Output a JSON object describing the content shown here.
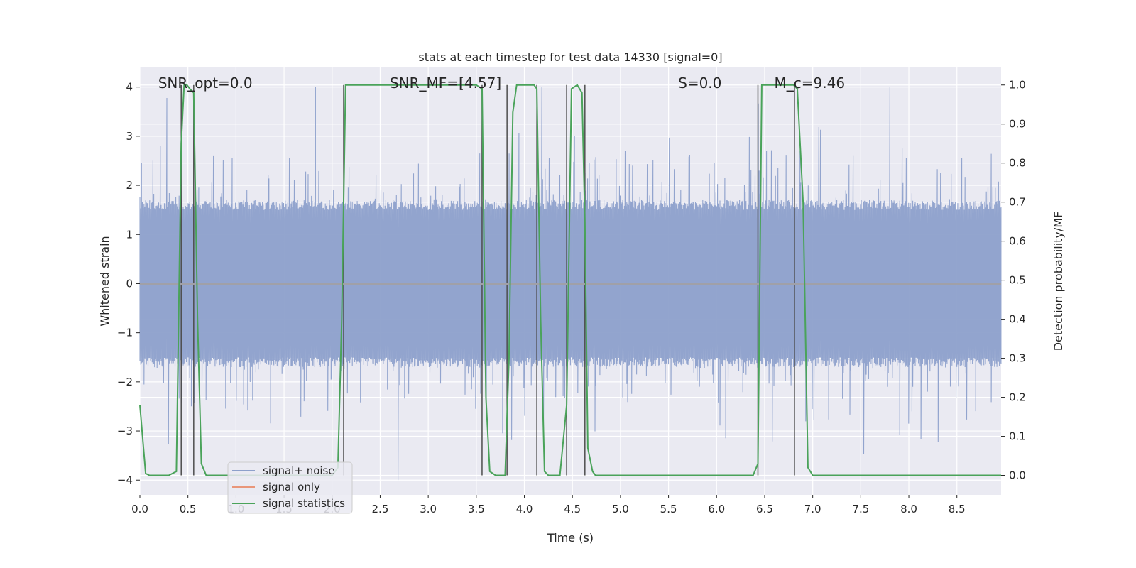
{
  "chart_data": {
    "type": "line",
    "title": "stats at each timestep for test data 14330 [signal=0]",
    "xlabel": "Time (s)",
    "ylabel": "Whitened strain",
    "y2label": "Detection probability/MF",
    "xlim": [
      0.0,
      8.96
    ],
    "ylim": [
      -4.3,
      4.4
    ],
    "y2lim": [
      -0.05,
      1.045
    ],
    "xticks": [
      0.0,
      0.5,
      1.0,
      1.5,
      2.0,
      2.5,
      3.0,
      3.5,
      4.0,
      4.5,
      5.0,
      5.5,
      6.0,
      6.5,
      7.0,
      7.5,
      8.0,
      8.5
    ],
    "xtick_labels": [
      "0.0",
      "0.5",
      "1.0",
      "1.5",
      "2.0",
      "2.5",
      "3.0",
      "3.5",
      "4.0",
      "4.5",
      "5.0",
      "5.5",
      "6.0",
      "6.5",
      "7.0",
      "7.5",
      "8.0",
      "8.5"
    ],
    "yticks": [
      -4,
      -3,
      -2,
      -1,
      0,
      1,
      2,
      3,
      4
    ],
    "ytick_labels": [
      "−4",
      "−3",
      "−2",
      "−1",
      "0",
      "1",
      "2",
      "3",
      "4"
    ],
    "y2ticks": [
      0.0,
      0.1,
      0.2,
      0.3,
      0.4,
      0.5,
      0.6,
      0.7,
      0.8,
      0.9,
      1.0
    ],
    "y2tick_labels": [
      "0.0",
      "0.1",
      "0.2",
      "0.3",
      "0.4",
      "0.5",
      "0.6",
      "0.7",
      "0.8",
      "0.9",
      "1.0"
    ],
    "grid": true,
    "legend": "lower-left",
    "annotations": [
      {
        "text": "SNR_opt=0.0",
        "x": 0.19
      },
      {
        "text": "SNR_MF=[4.57]",
        "x": 2.6
      },
      {
        "text": "S=0.0",
        "x": 5.6
      },
      {
        "text": "M_c=9.46",
        "x": 6.6
      }
    ],
    "vertical_lines_x": [
      0.43,
      0.56,
      2.12,
      3.56,
      3.82,
      4.13,
      4.44,
      4.63,
      6.43,
      6.81
    ],
    "series": [
      {
        "name": "signal+ noise",
        "color": "#8da0cb",
        "kind": "noise",
        "sample_step": 0.0085,
        "envelope": [
          -4.0,
          4.0
        ]
      },
      {
        "name": "signal only",
        "color": "#e9967a",
        "kind": "flat",
        "values": [
          0,
          0
        ],
        "x": [
          0.0,
          8.96
        ]
      },
      {
        "name": "signal statistics",
        "color": "#4aa35a",
        "kind": "prob",
        "x": [
          0.0,
          0.06,
          0.1,
          0.2,
          0.3,
          0.38,
          0.43,
          0.46,
          0.49,
          0.52,
          0.56,
          0.6,
          0.64,
          0.69,
          0.8,
          1.0,
          1.5,
          2.0,
          2.06,
          2.1,
          2.14,
          2.2,
          2.5,
          3.0,
          3.3,
          3.5,
          3.56,
          3.6,
          3.64,
          3.7,
          3.8,
          3.84,
          3.88,
          3.92,
          3.96,
          4.02,
          4.1,
          4.13,
          4.17,
          4.21,
          4.25,
          4.3,
          4.37,
          4.44,
          4.49,
          4.55,
          4.6,
          4.63,
          4.66,
          4.71,
          4.74,
          5.0,
          5.5,
          6.0,
          6.38,
          6.43,
          6.47,
          6.5,
          6.7,
          6.8,
          6.84,
          6.9,
          6.95,
          7.0,
          7.5,
          8.0,
          8.5,
          8.96
        ],
        "values": [
          0.18,
          0.005,
          0.0,
          0.0,
          0.0,
          0.01,
          0.85,
          1.0,
          1.0,
          0.99,
          0.98,
          0.4,
          0.03,
          0.0,
          0.0,
          0.0,
          0.0,
          0.0,
          0.02,
          0.4,
          1.0,
          1.0,
          1.0,
          1.0,
          1.0,
          1.0,
          0.99,
          0.2,
          0.01,
          0.0,
          0.0,
          0.3,
          0.93,
          1.0,
          1.0,
          1.0,
          1.0,
          0.99,
          0.4,
          0.01,
          0.0,
          0.0,
          0.0,
          0.18,
          0.99,
          1.0,
          0.98,
          0.65,
          0.07,
          0.01,
          0.0,
          0.0,
          0.0,
          0.0,
          0.0,
          0.03,
          1.0,
          1.0,
          1.0,
          1.0,
          0.99,
          0.7,
          0.02,
          0.0,
          0.0,
          0.0,
          0.0,
          0.0
        ]
      }
    ]
  }
}
